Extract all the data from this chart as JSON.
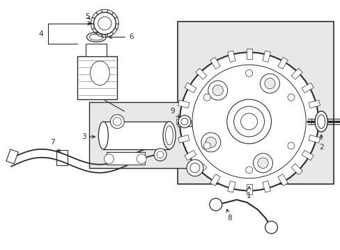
{
  "bg_color": "#ffffff",
  "line_color": "#2a2a2a",
  "light_gray": "#e8e8e8",
  "fig_width": 4.89,
  "fig_height": 3.6,
  "dpi": 100
}
